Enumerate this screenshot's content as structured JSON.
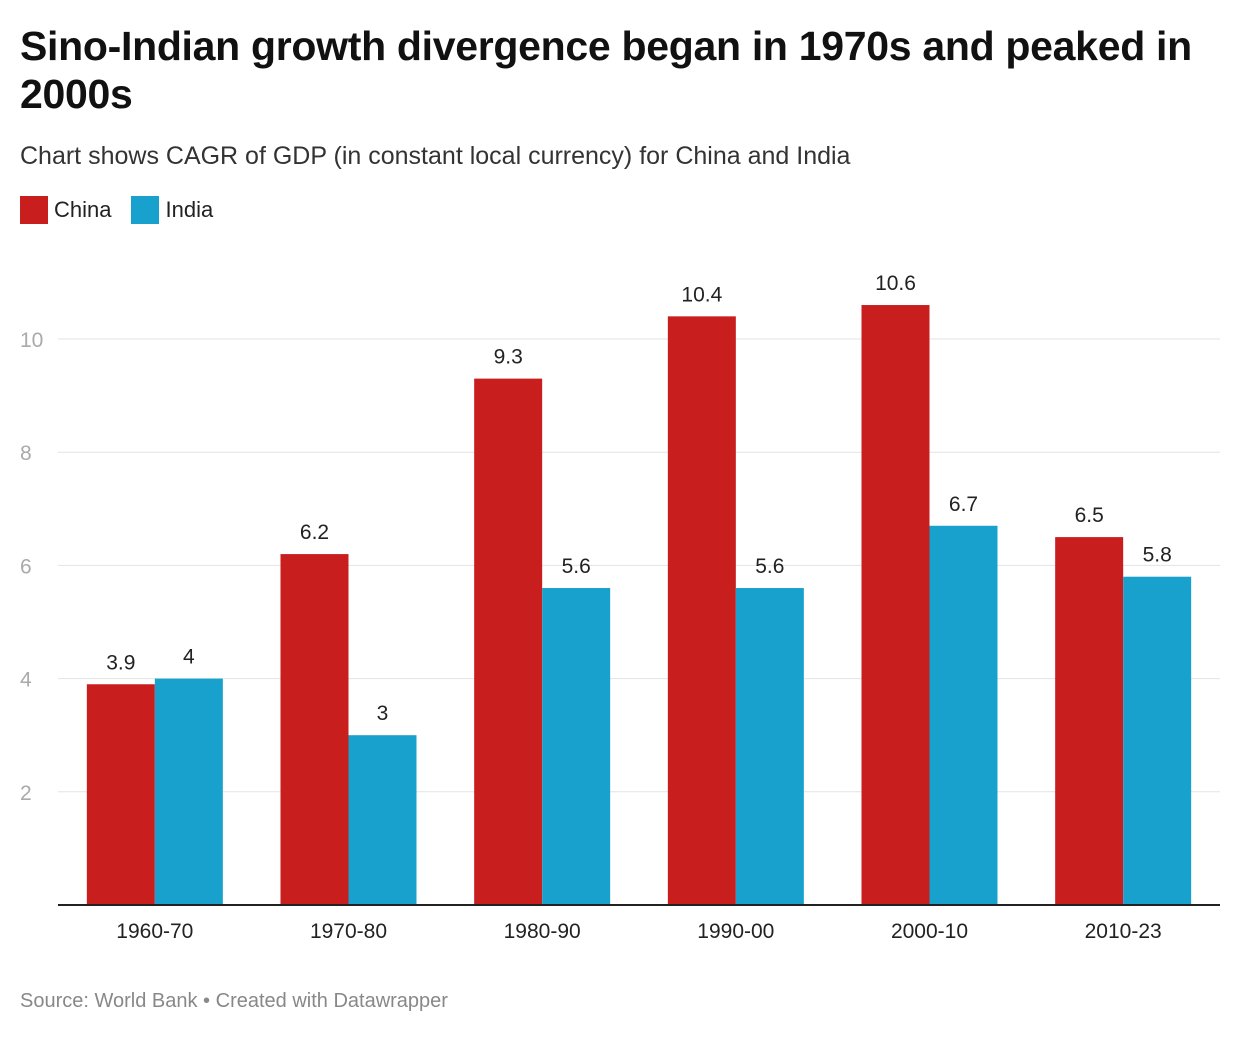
{
  "title": "Sino-Indian growth divergence began in 1970s and peaked in 2000s",
  "subtitle": "Chart shows CAGR of GDP (in constant local currency) for China and India",
  "footer": {
    "source": "Source: World Bank",
    "separator": " • ",
    "credit": "Created with Datawrapper"
  },
  "chart_data": {
    "type": "bar",
    "categories": [
      "1960-70",
      "1970-80",
      "1980-90",
      "1990-00",
      "2000-10",
      "2010-23"
    ],
    "series": [
      {
        "name": "China",
        "color": "#c81e1e",
        "values": [
          3.9,
          6.2,
          9.3,
          10.4,
          10.6,
          6.5
        ]
      },
      {
        "name": "India",
        "color": "#18a1cd",
        "values": [
          4,
          3,
          5.6,
          5.6,
          6.7,
          5.8
        ]
      }
    ],
    "ylim": [
      0,
      11.5
    ],
    "yticks": [
      2,
      4,
      6,
      8,
      10
    ],
    "grid": true,
    "legend": "top-left",
    "xlabel": "",
    "ylabel": ""
  }
}
